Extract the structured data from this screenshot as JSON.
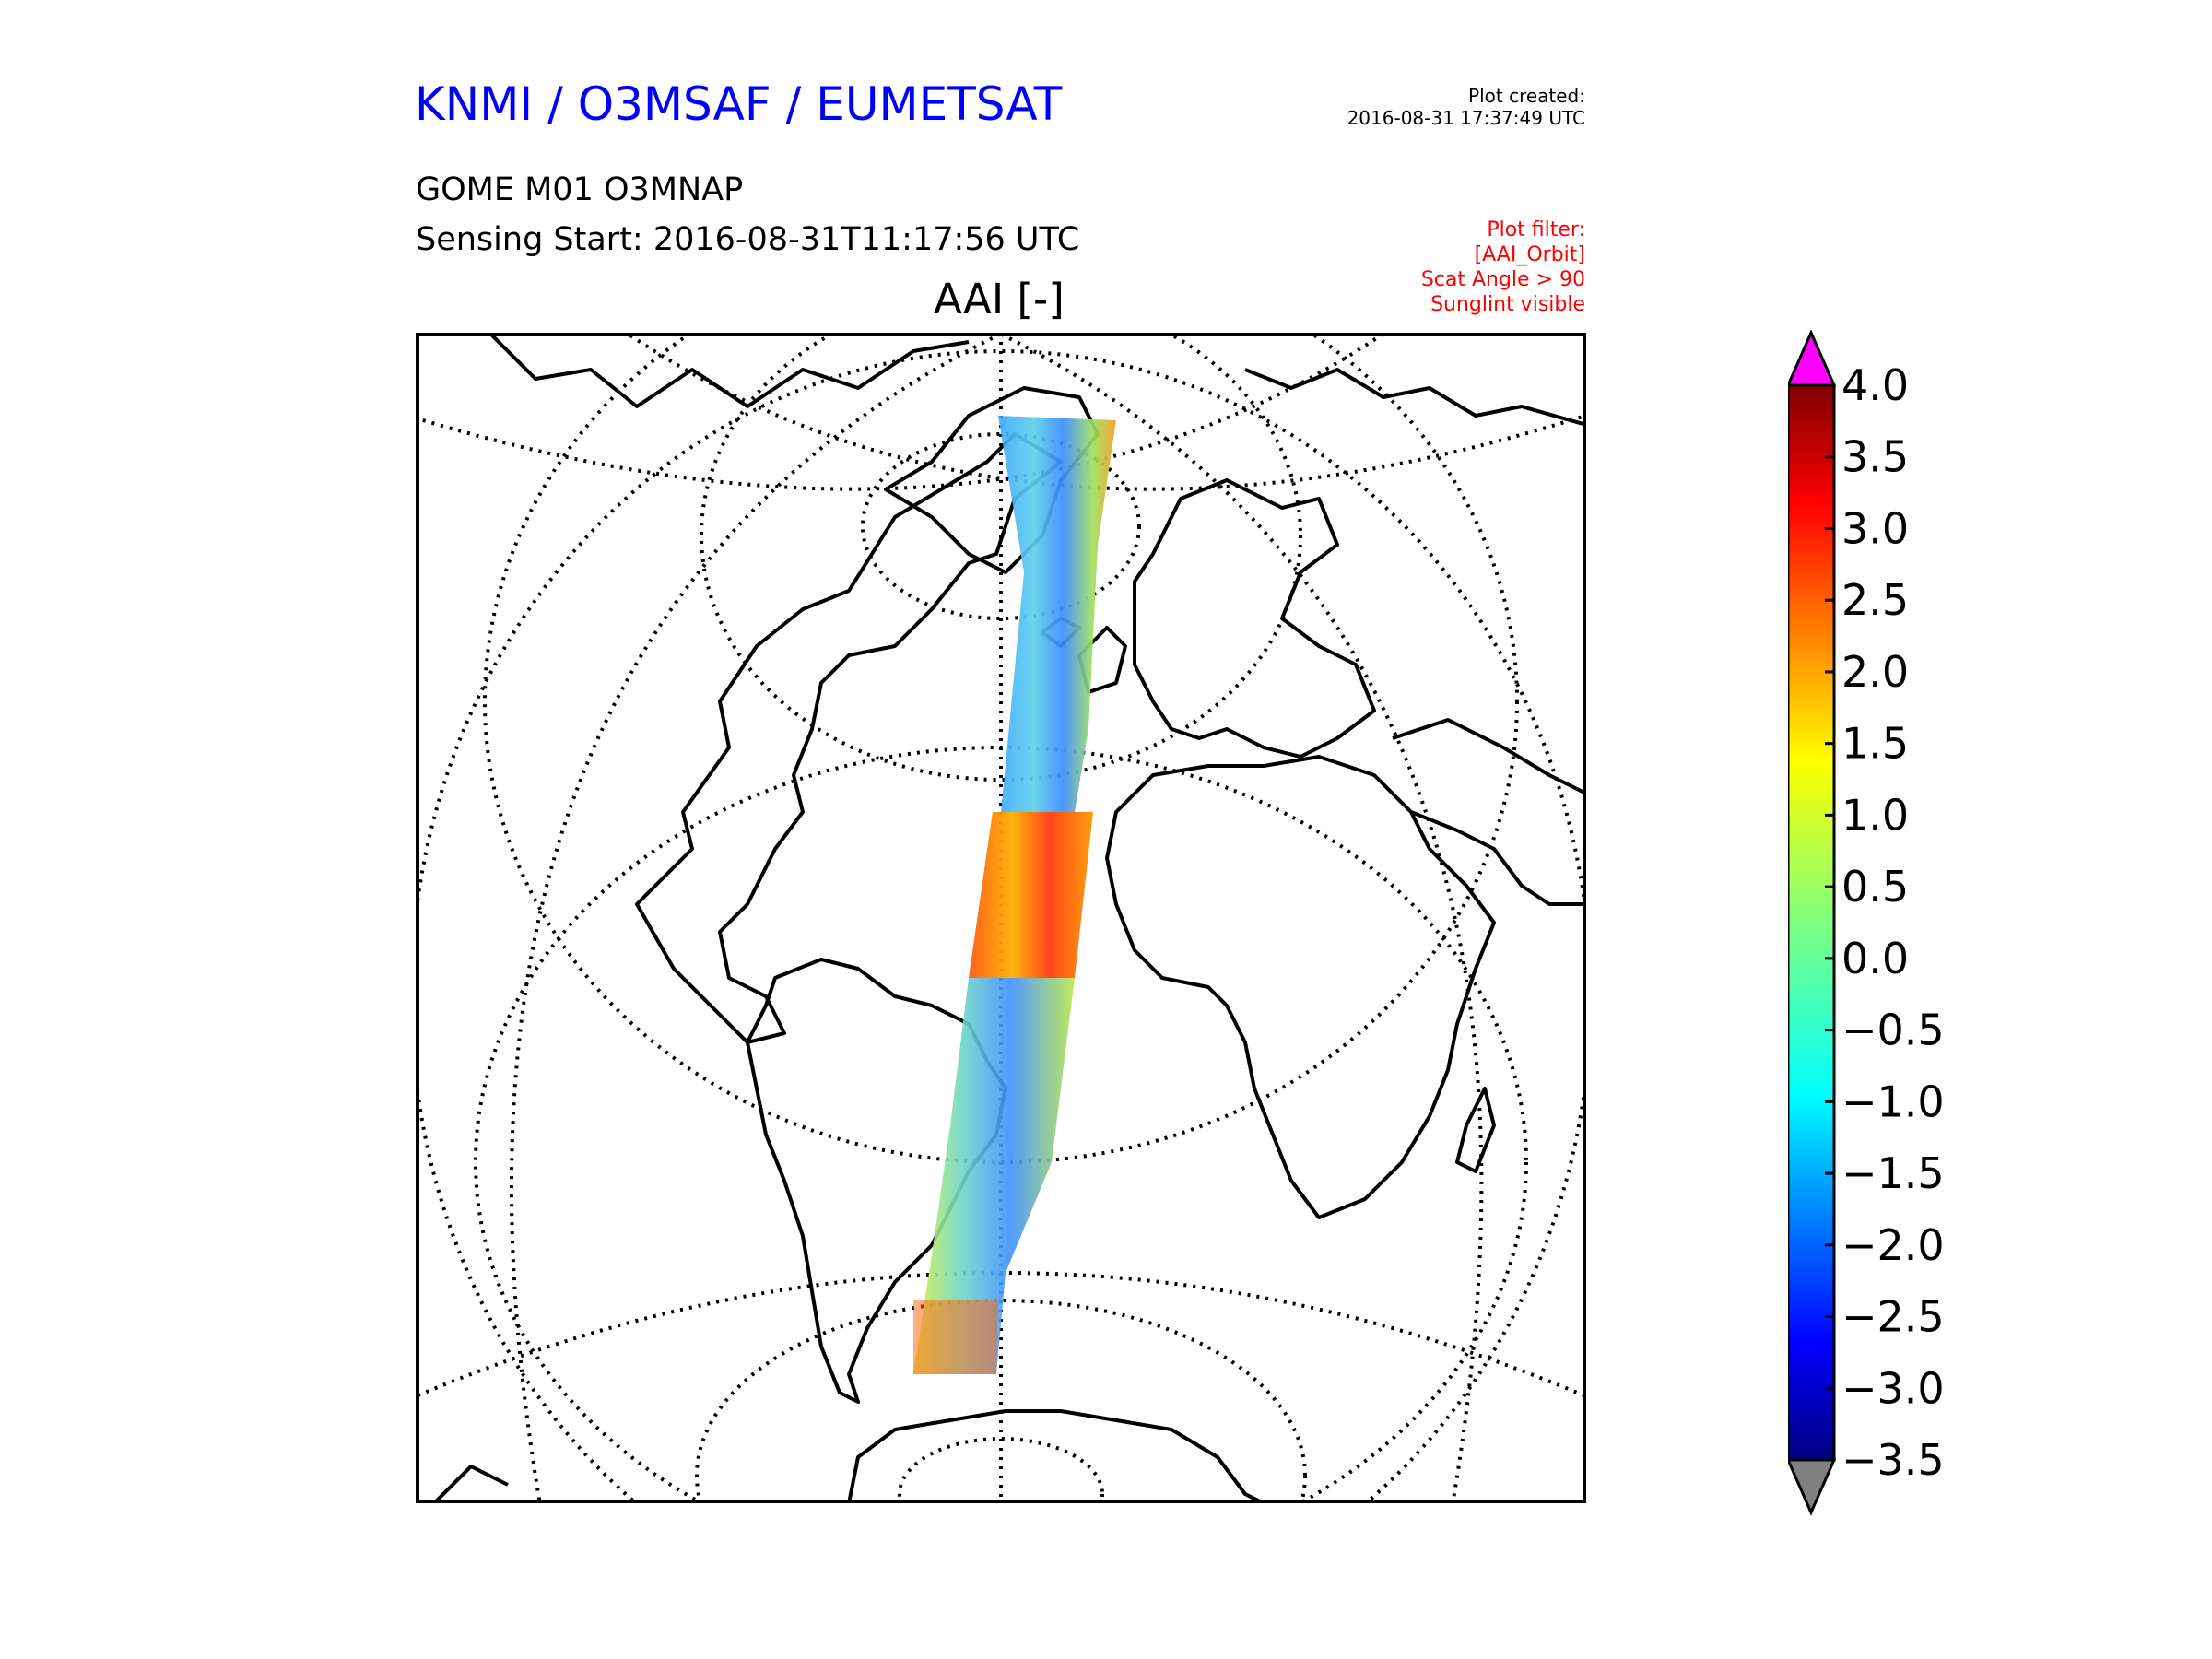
{
  "header": {
    "org_title": "KNMI / O3MSAF / EUMETSAT",
    "product": "GOME M01 O3MNAP",
    "sensing": "Sensing Start: 2016-08-31T11:17:56 UTC",
    "created_label": "Plot created:",
    "created_time": "2016-08-31 17:37:49 UTC"
  },
  "filter": {
    "label": "Plot filter:",
    "lines": [
      "[AAI_Orbit]",
      "Scat Angle > 90",
      "Sunglint visible"
    ]
  },
  "map": {
    "title": "AAI [-]",
    "projection": "orthographic",
    "swath_colormap": "jet",
    "graticule_style": "dotted"
  },
  "colorbar": {
    "ticks": [
      "4.0",
      "3.5",
      "3.0",
      "2.5",
      "2.0",
      "1.5",
      "1.0",
      "0.5",
      "0.0",
      "−0.5",
      "−1.0",
      "−1.5",
      "−2.0",
      "−2.5",
      "−3.0",
      "−3.5"
    ],
    "min": -3.5,
    "max": 4.0,
    "over_color": "#ff00ff",
    "under_color": "#808080"
  }
}
